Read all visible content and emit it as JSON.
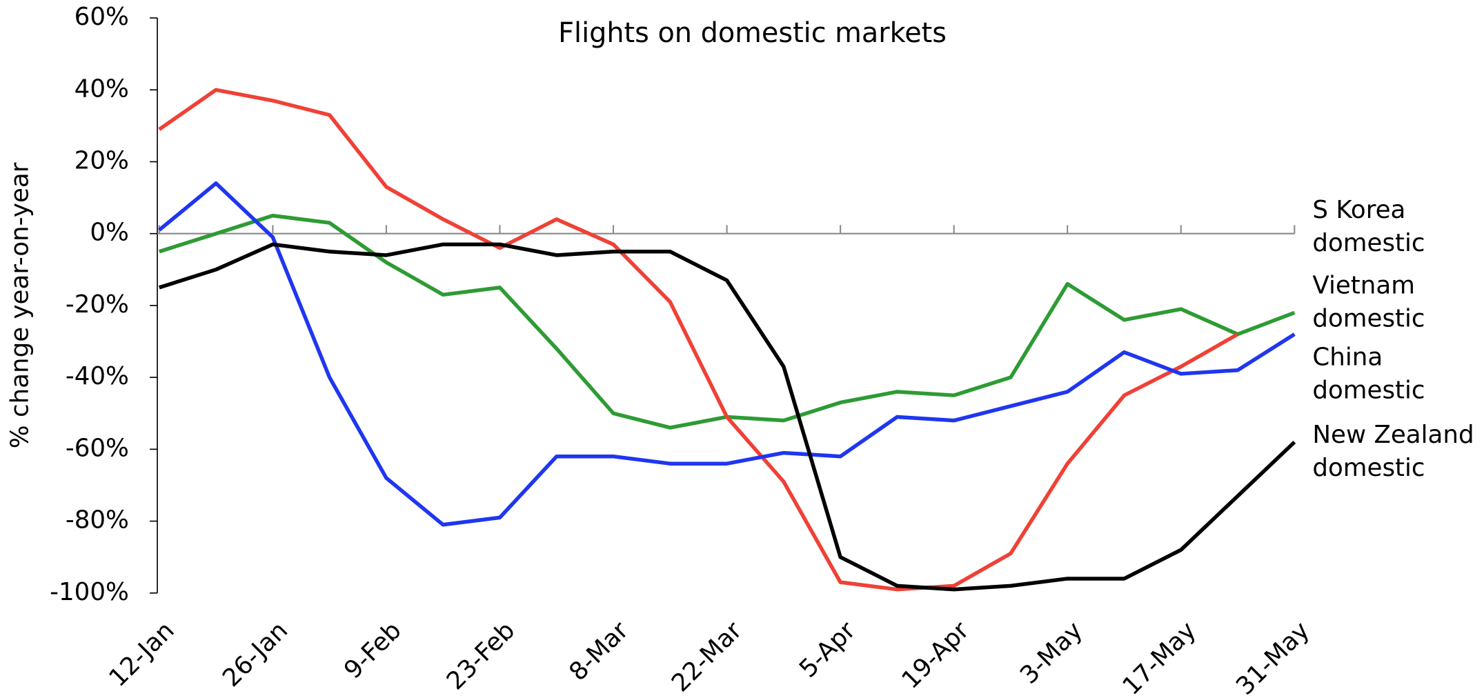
{
  "chart_data": {
    "type": "line",
    "title": "Flights on domestic markets",
    "y_label": "% change year-on-year",
    "categories": [
      "12-Jan",
      null,
      "26-Jan",
      null,
      "9-Feb",
      null,
      "23-Feb",
      null,
      "8-Mar",
      null,
      "22-Mar",
      null,
      "5-Apr",
      null,
      "19-Apr",
      null,
      "3-May",
      null,
      "17-May",
      null,
      "31-May"
    ],
    "series": [
      {
        "name": "S Korea domestic",
        "color": "#2e9b34",
        "values": [
          -5,
          0,
          5,
          3,
          -8,
          -17,
          -15,
          -32,
          -50,
          -54,
          -51,
          -52,
          -47,
          -44,
          -45,
          -40,
          -14,
          -24,
          -21,
          -28,
          -22
        ]
      },
      {
        "name": "Vietnam domestic",
        "color": "#ef4136",
        "values": [
          29,
          40,
          37,
          33,
          13,
          4,
          -4,
          4,
          -3,
          -19,
          -51,
          -69,
          -97,
          -99,
          -98,
          -89,
          -64,
          -45,
          -37,
          -28,
          null
        ]
      },
      {
        "name": "China domestic",
        "color": "#1f36f0",
        "values": [
          1,
          14,
          -1,
          -40,
          -68,
          -81,
          -79,
          -62,
          -62,
          -64,
          -64,
          -61,
          -62,
          -51,
          -52,
          -48,
          -44,
          -33,
          -39,
          -38,
          -28
        ]
      },
      {
        "name": "New Zealand domestic",
        "color": "#000000",
        "values": [
          -15,
          -10,
          -3,
          -5,
          -6,
          -3,
          -3,
          -6,
          -5,
          -5,
          -13,
          -37,
          -90,
          -98,
          -99,
          -98,
          -96,
          -96,
          -88,
          -73,
          -58
        ]
      }
    ],
    "ylim": [
      -100,
      60
    ],
    "yticks": [
      {
        "value": -100,
        "label": "-100%"
      },
      {
        "value": -80,
        "label": "-80%"
      },
      {
        "value": -60,
        "label": "-60%"
      },
      {
        "value": -40,
        "label": "-40%"
      },
      {
        "value": -20,
        "label": "-20%"
      },
      {
        "value": 0,
        "label": "0%"
      },
      {
        "value": 20,
        "label": "20%"
      },
      {
        "value": 40,
        "label": "40%"
      },
      {
        "value": 60,
        "label": "60%"
      }
    ],
    "grid": false
  }
}
